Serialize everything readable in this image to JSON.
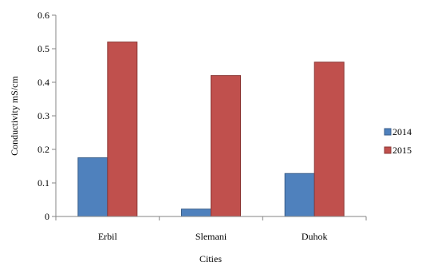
{
  "chart_data": {
    "type": "bar",
    "title": "",
    "xlabel": "Cities",
    "ylabel": "Conductivity mS/cm",
    "categories": [
      "Erbil",
      "Slemani",
      "Duhok"
    ],
    "ylim": [
      0,
      0.6
    ],
    "yticks": [
      0,
      0.1,
      0.2,
      0.3,
      0.4,
      0.5,
      0.6
    ],
    "ytick_labels": [
      "0",
      "0.1",
      "0.2",
      "0.3",
      "0.4",
      "0.5",
      "0.6"
    ],
    "grid": false,
    "legend_position": "right",
    "series": [
      {
        "name": "2014",
        "values": [
          0.175,
          0.022,
          0.128
        ],
        "color": "#4f81bd",
        "edge": "#385d8a"
      },
      {
        "name": "2015",
        "values": [
          0.52,
          0.42,
          0.46
        ],
        "color": "#c0504d",
        "edge": "#8c3836"
      }
    ]
  }
}
